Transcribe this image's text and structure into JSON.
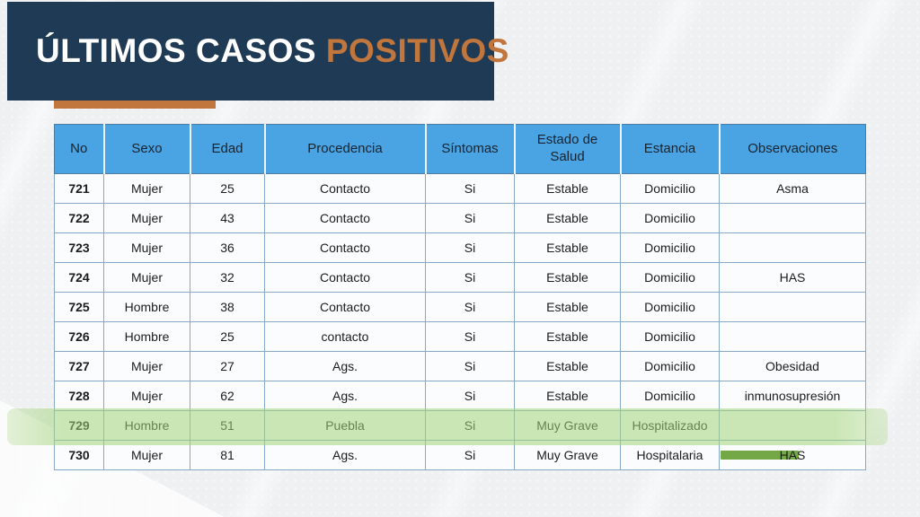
{
  "header": {
    "title_primary": "ÚLTIMOS CASOS",
    "title_accent": "POSITIVOS",
    "banner_color": "#1f3a55",
    "accent_color": "#c0763c"
  },
  "table": {
    "header_bg": "#4aa3e3",
    "highlight_color": "#a3d47a",
    "marker_color": "#74a746",
    "columns": [
      "No",
      "Sexo",
      "Edad",
      "Procedencia",
      "Síntomas",
      "Estado de Salud",
      "Estancia",
      "Observaciones"
    ],
    "rows": [
      {
        "cells": [
          "721",
          "Mujer",
          "25",
          "Contacto",
          "Si",
          "Estable",
          "Domicilio",
          "Asma"
        ],
        "highlighted": false,
        "obs_marker": false
      },
      {
        "cells": [
          "722",
          "Mujer",
          "43",
          "Contacto",
          "Si",
          "Estable",
          "Domicilio",
          ""
        ],
        "highlighted": false,
        "obs_marker": false
      },
      {
        "cells": [
          "723",
          "Mujer",
          "36",
          "Contacto",
          "Si",
          "Estable",
          "Domicilio",
          ""
        ],
        "highlighted": false,
        "obs_marker": false
      },
      {
        "cells": [
          "724",
          "Mujer",
          "32",
          "Contacto",
          "Si",
          "Estable",
          "Domicilio",
          "HAS"
        ],
        "highlighted": false,
        "obs_marker": false
      },
      {
        "cells": [
          "725",
          "Hombre",
          "38",
          "Contacto",
          "Si",
          "Estable",
          "Domicilio",
          ""
        ],
        "highlighted": false,
        "obs_marker": false
      },
      {
        "cells": [
          "726",
          "Hombre",
          "25",
          "contacto",
          "Si",
          "Estable",
          "Domicilio",
          ""
        ],
        "highlighted": false,
        "obs_marker": false
      },
      {
        "cells": [
          "727",
          "Mujer",
          "27",
          "Ags.",
          "Si",
          "Estable",
          "Domicilio",
          "Obesidad"
        ],
        "highlighted": false,
        "obs_marker": false
      },
      {
        "cells": [
          "728",
          "Mujer",
          "62",
          "Ags.",
          "Si",
          "Estable",
          "Domicilio",
          "inmunosupresión"
        ],
        "highlighted": false,
        "obs_marker": false
      },
      {
        "cells": [
          "729",
          "Hombre",
          "51",
          "Puebla",
          "Si",
          "Muy Grave",
          "Hospitalizado",
          ""
        ],
        "highlighted": true,
        "obs_marker": false
      },
      {
        "cells": [
          "730",
          "Mujer",
          "81",
          "Ags.",
          "Si",
          "Muy Grave",
          "Hospitalaria",
          "HAS"
        ],
        "highlighted": false,
        "obs_marker": true
      }
    ]
  }
}
